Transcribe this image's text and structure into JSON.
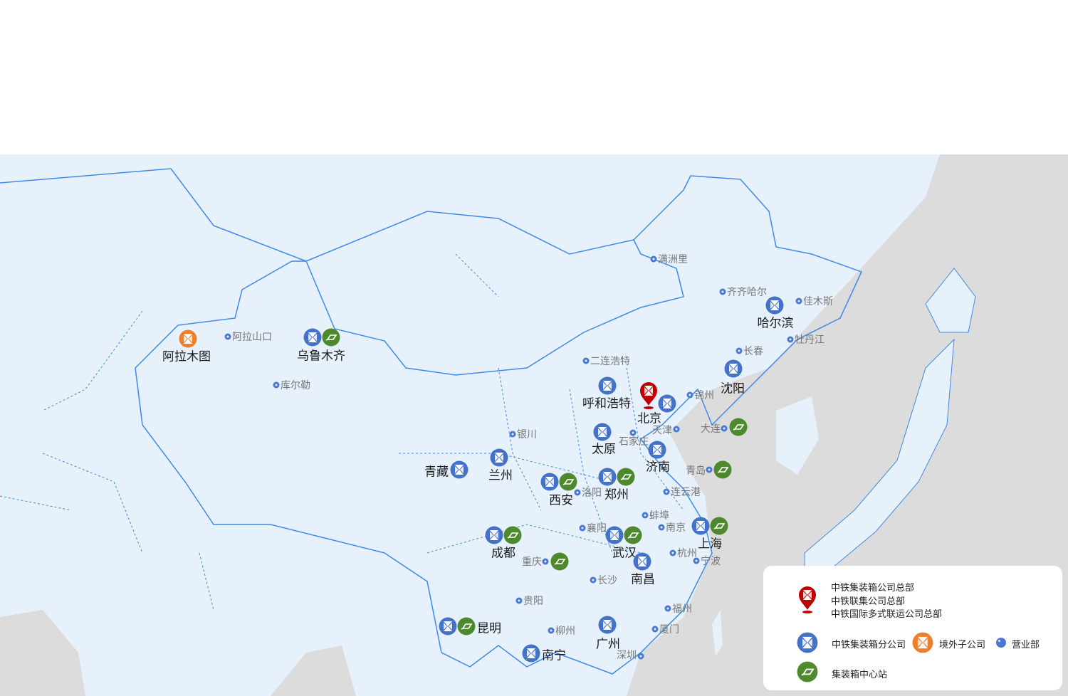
{
  "colors": {
    "branch": "#4472c9",
    "hub": "#4e8a2d",
    "overseas": "#f07f2a",
    "hq": "#c00000",
    "office": "#4a78cf",
    "land": "#e7f1fc",
    "sea": "#dcdcdc",
    "border": "#3d8be8"
  },
  "markers": [
    {
      "name": "阿拉木图",
      "type": "overseas"
    },
    {
      "name": "阿拉山口",
      "type": "office"
    },
    {
      "name": "乌鲁木齐",
      "type": "branch+hub"
    },
    {
      "name": "库尔勒",
      "type": "office"
    },
    {
      "name": "满洲里",
      "type": "office"
    },
    {
      "name": "齐齐哈尔",
      "type": "office"
    },
    {
      "name": "哈尔滨",
      "type": "branch"
    },
    {
      "name": "佳木斯",
      "type": "office"
    },
    {
      "name": "牡丹江",
      "type": "office"
    },
    {
      "name": "长春",
      "type": "office"
    },
    {
      "name": "沈阳",
      "type": "branch"
    },
    {
      "name": "二连浩特",
      "type": "office"
    },
    {
      "name": "呼和浩特",
      "type": "branch"
    },
    {
      "name": "北京",
      "type": "hq+branch"
    },
    {
      "name": "锦州",
      "type": "office"
    },
    {
      "name": "天津",
      "type": "office"
    },
    {
      "name": "大连",
      "type": "office+hub"
    },
    {
      "name": "太原",
      "type": "branch"
    },
    {
      "name": "石家庄",
      "type": "office"
    },
    {
      "name": "济南",
      "type": "branch"
    },
    {
      "name": "银川",
      "type": "office"
    },
    {
      "name": "青藏",
      "type": "branch"
    },
    {
      "name": "兰州",
      "type": "branch"
    },
    {
      "name": "青岛",
      "type": "office+hub"
    },
    {
      "name": "西安",
      "type": "branch+hub"
    },
    {
      "name": "洛阳",
      "type": "office"
    },
    {
      "name": "郑州",
      "type": "branch+hub"
    },
    {
      "name": "连云港",
      "type": "office"
    },
    {
      "name": "蚌埠",
      "type": "office"
    },
    {
      "name": "襄阳",
      "type": "office"
    },
    {
      "name": "南京",
      "type": "office"
    },
    {
      "name": "上海",
      "type": "branch+hub"
    },
    {
      "name": "成都",
      "type": "branch+hub"
    },
    {
      "name": "武汉",
      "type": "branch+hub"
    },
    {
      "name": "重庆",
      "type": "office+hub"
    },
    {
      "name": "杭州",
      "type": "office"
    },
    {
      "name": "宁波",
      "type": "office"
    },
    {
      "name": "南昌",
      "type": "branch"
    },
    {
      "name": "长沙",
      "type": "office"
    },
    {
      "name": "贵阳",
      "type": "office"
    },
    {
      "name": "福州",
      "type": "office"
    },
    {
      "name": "昆明",
      "type": "branch+hub"
    },
    {
      "name": "柳州",
      "type": "office"
    },
    {
      "name": "广州",
      "type": "branch"
    },
    {
      "name": "厦门",
      "type": "office"
    },
    {
      "name": "南宁",
      "type": "branch"
    },
    {
      "name": "深圳",
      "type": "office"
    }
  ],
  "legend": {
    "hq_lines": [
      "中铁集装箱公司总部",
      "中铁联集公司总部",
      "中铁国际多式联运公司总部"
    ],
    "branch": "中铁集装箱分公司",
    "overseas": "境外子公司",
    "office": "营业部",
    "hub": "集装箱中心站"
  }
}
